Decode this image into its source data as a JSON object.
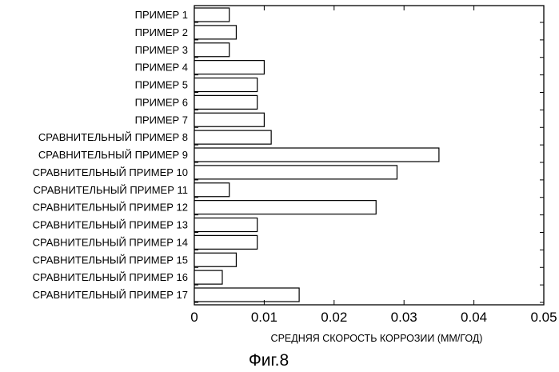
{
  "chart_data": {
    "type": "bar",
    "orientation": "horizontal",
    "categories": [
      "ПРИМЕР 1",
      "ПРИМЕР 2",
      "ПРИМЕР 3",
      "ПРИМЕР 4",
      "ПРИМЕР 5",
      "ПРИМЕР 6",
      "ПРИМЕР 7",
      "СРАВНИТЕЛЬНЫЙ ПРИМЕР 8",
      "СРАВНИТЕЛЬНЫЙ ПРИМЕР 9",
      "СРАВНИТЕЛЬНЫЙ ПРИМЕР 10",
      "СРАВНИТЕЛЬНЫЙ ПРИМЕР 11",
      "СРАВНИТЕЛЬНЫЙ ПРИМЕР 12",
      "СРАВНИТЕЛЬНЫЙ ПРИМЕР 13",
      "СРАВНИТЕЛЬНЫЙ ПРИМЕР 14",
      "СРАВНИТЕЛЬНЫЙ ПРИМЕР 15",
      "СРАВНИТЕЛЬНЫЙ ПРИМЕР 16",
      "СРАВНИТЕЛЬНЫЙ ПРИМЕР 17"
    ],
    "values": [
      0.005,
      0.006,
      0.005,
      0.01,
      0.009,
      0.009,
      0.01,
      0.011,
      0.035,
      0.029,
      0.005,
      0.026,
      0.009,
      0.009,
      0.006,
      0.004,
      0.015
    ],
    "xlim": [
      0,
      0.05
    ],
    "xticks": [
      0,
      0.01,
      0.02,
      0.03,
      0.04,
      0.05
    ],
    "xtick_labels": [
      "0",
      "0.01",
      "0.02",
      "0.03",
      "0.04",
      "0.05"
    ],
    "xlabel": "СРЕДНЯЯ СКОРОСТЬ КОРРОЗИИ (ММ/ГОД)",
    "caption": "Фиг.8",
    "grid": false,
    "bar_fill": "#ffffff",
    "bar_stroke": "#000000"
  }
}
